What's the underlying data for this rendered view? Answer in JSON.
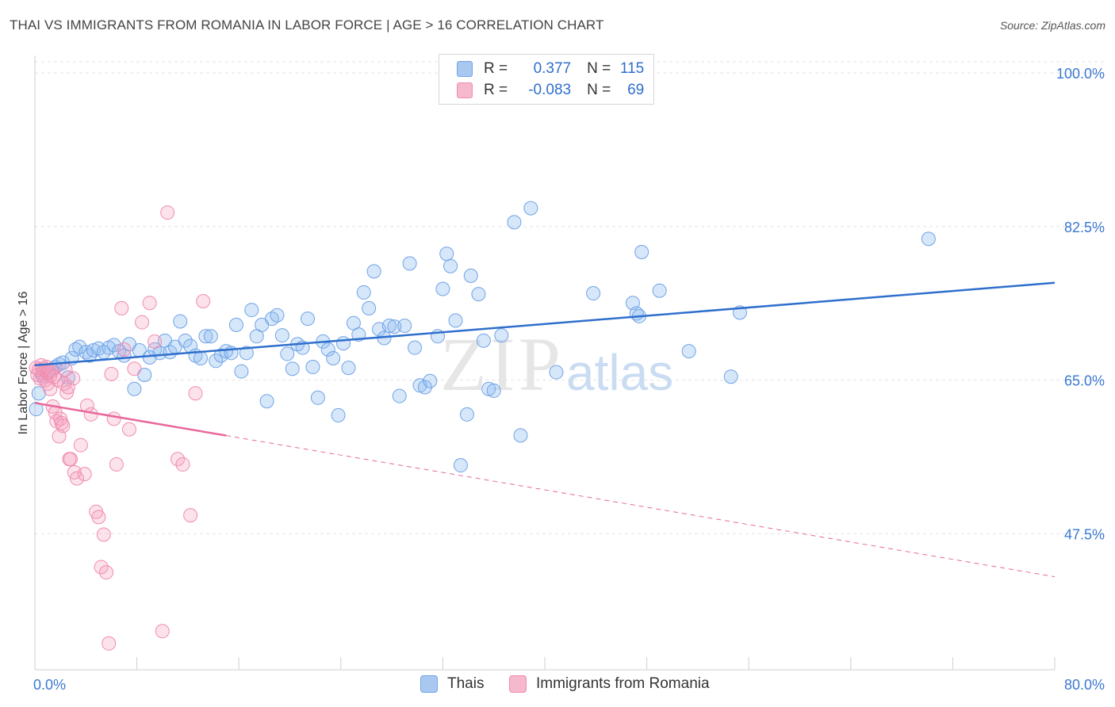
{
  "title": "THAI VS IMMIGRANTS FROM ROMANIA IN LABOR FORCE | AGE > 16 CORRELATION CHART",
  "source": "Source: ZipAtlas.com",
  "watermark": {
    "zip": "ZIP",
    "atlas": "atlas"
  },
  "legend": {
    "r_label": "R =",
    "n_label": "N =",
    "rows": [
      {
        "r": "0.377",
        "n": "115",
        "color": "#a8c8f0"
      },
      {
        "r": "-0.083",
        "n": "69",
        "color": "#f5b8cc"
      }
    ]
  },
  "bottom_legend": [
    {
      "label": "Thais",
      "color": "#a8c8f0"
    },
    {
      "label": "Immigrants from Romania",
      "color": "#f5b8cc"
    }
  ],
  "chart_data": {
    "type": "scatter",
    "title": "THAI VS IMMIGRANTS FROM ROMANIA IN LABOR FORCE | AGE > 16 CORRELATION CHART",
    "xlabel": "",
    "ylabel": "In Labor Force | Age > 16",
    "xlim": [
      0,
      80
    ],
    "ylim": [
      32,
      102
    ],
    "x_tick_labels": [
      "0.0%",
      "80.0%"
    ],
    "y_ticks": [
      47.5,
      65.0,
      82.5,
      100.0
    ],
    "y_tick_labels": [
      "47.5%",
      "65.0%",
      "82.5%",
      "100.0%"
    ],
    "grid": true,
    "series": [
      {
        "name": "Thais",
        "color": "#6fa3e6",
        "points": [
          [
            0.1,
            61.7
          ],
          [
            0.3,
            63.5
          ],
          [
            0.6,
            65.5
          ],
          [
            0.8,
            66.0
          ],
          [
            1.0,
            65.8
          ],
          [
            1.3,
            66.2
          ],
          [
            1.6,
            66.5
          ],
          [
            1.9,
            66.8
          ],
          [
            2.2,
            67.0
          ],
          [
            2.6,
            65.3
          ],
          [
            2.9,
            67.5
          ],
          [
            3.2,
            68.5
          ],
          [
            3.5,
            68.8
          ],
          [
            4.0,
            68.2
          ],
          [
            4.3,
            67.8
          ],
          [
            4.6,
            68.4
          ],
          [
            5.0,
            68.6
          ],
          [
            5.4,
            68.2
          ],
          [
            5.8,
            68.7
          ],
          [
            6.2,
            69.0
          ],
          [
            6.6,
            68.3
          ],
          [
            7.0,
            67.8
          ],
          [
            7.4,
            69.1
          ],
          [
            7.8,
            64.0
          ],
          [
            8.2,
            68.4
          ],
          [
            8.6,
            65.6
          ],
          [
            9.0,
            67.6
          ],
          [
            9.4,
            68.5
          ],
          [
            9.8,
            68.1
          ],
          [
            10.2,
            69.5
          ],
          [
            10.6,
            68.2
          ],
          [
            11.0,
            68.8
          ],
          [
            11.4,
            71.7
          ],
          [
            11.8,
            69.5
          ],
          [
            12.2,
            68.9
          ],
          [
            12.6,
            67.8
          ],
          [
            13.0,
            67.5
          ],
          [
            13.4,
            70.0
          ],
          [
            13.8,
            70.0
          ],
          [
            14.2,
            67.2
          ],
          [
            14.6,
            67.8
          ],
          [
            15.0,
            68.3
          ],
          [
            15.4,
            68.1
          ],
          [
            15.8,
            71.3
          ],
          [
            16.2,
            66.0
          ],
          [
            16.6,
            68.1
          ],
          [
            17.0,
            73.0
          ],
          [
            17.4,
            70.0
          ],
          [
            17.8,
            71.3
          ],
          [
            18.2,
            62.6
          ],
          [
            18.6,
            72.0
          ],
          [
            19.0,
            72.4
          ],
          [
            19.4,
            70.1
          ],
          [
            19.8,
            68.0
          ],
          [
            20.2,
            66.3
          ],
          [
            20.6,
            69.1
          ],
          [
            21.0,
            68.7
          ],
          [
            21.4,
            72.0
          ],
          [
            21.8,
            66.5
          ],
          [
            22.2,
            63.0
          ],
          [
            22.6,
            69.4
          ],
          [
            23.0,
            68.5
          ],
          [
            23.4,
            67.5
          ],
          [
            23.8,
            61.0
          ],
          [
            24.2,
            69.2
          ],
          [
            24.6,
            66.4
          ],
          [
            25.0,
            71.5
          ],
          [
            25.4,
            70.2
          ],
          [
            25.8,
            75.0
          ],
          [
            26.2,
            73.2
          ],
          [
            26.6,
            77.4
          ],
          [
            27.0,
            70.8
          ],
          [
            27.4,
            69.8
          ],
          [
            27.8,
            71.2
          ],
          [
            28.2,
            71.1
          ],
          [
            28.6,
            63.2
          ],
          [
            29.0,
            71.2
          ],
          [
            29.4,
            78.3
          ],
          [
            29.8,
            68.7
          ],
          [
            30.2,
            64.4
          ],
          [
            30.6,
            64.2
          ],
          [
            31.0,
            64.9
          ],
          [
            31.6,
            70.0
          ],
          [
            32.0,
            75.4
          ],
          [
            32.3,
            79.4
          ],
          [
            32.6,
            78.0
          ],
          [
            33.0,
            71.8
          ],
          [
            33.4,
            55.3
          ],
          [
            33.9,
            61.1
          ],
          [
            34.2,
            76.9
          ],
          [
            34.8,
            74.8
          ],
          [
            35.2,
            69.5
          ],
          [
            35.6,
            64.0
          ],
          [
            36.0,
            63.8
          ],
          [
            36.6,
            70.1
          ],
          [
            37.6,
            83.0
          ],
          [
            38.1,
            58.7
          ],
          [
            38.9,
            84.6
          ],
          [
            40.9,
            65.9
          ],
          [
            43.8,
            74.9
          ],
          [
            46.9,
            73.8
          ],
          [
            47.2,
            72.6
          ],
          [
            47.4,
            72.3
          ],
          [
            47.6,
            79.6
          ],
          [
            49.0,
            75.2
          ],
          [
            51.3,
            68.3
          ],
          [
            54.6,
            65.4
          ],
          [
            55.3,
            72.7
          ],
          [
            70.1,
            81.1
          ]
        ],
        "trend": {
          "x": [
            0,
            80
          ],
          "y": [
            66.7,
            76.1
          ]
        }
      },
      {
        "name": "Immigrants from Romania",
        "color": "#f08cb0",
        "points": [
          [
            0.1,
            66.4
          ],
          [
            0.2,
            65.6
          ],
          [
            0.3,
            66.2
          ],
          [
            0.4,
            65.2
          ],
          [
            0.5,
            66.7
          ],
          [
            0.6,
            65.8
          ],
          [
            0.7,
            66.3
          ],
          [
            0.8,
            65.0
          ],
          [
            0.9,
            66.5
          ],
          [
            1.0,
            65.9
          ],
          [
            1.0,
            64.6
          ],
          [
            1.1,
            66.1
          ],
          [
            1.2,
            65.5
          ],
          [
            1.2,
            64.0
          ],
          [
            1.3,
            66.0
          ],
          [
            1.4,
            62.0
          ],
          [
            1.5,
            65.4
          ],
          [
            1.6,
            61.3
          ],
          [
            1.7,
            60.3
          ],
          [
            1.8,
            65.0
          ],
          [
            1.9,
            58.6
          ],
          [
            2.0,
            60.6
          ],
          [
            2.1,
            60.1
          ],
          [
            2.2,
            59.8
          ],
          [
            2.3,
            64.6
          ],
          [
            2.4,
            66.2
          ],
          [
            2.5,
            63.6
          ],
          [
            2.6,
            64.2
          ],
          [
            2.7,
            56.0
          ],
          [
            2.8,
            56.0
          ],
          [
            3.0,
            65.2
          ],
          [
            3.1,
            54.5
          ],
          [
            3.3,
            53.8
          ],
          [
            3.6,
            57.6
          ],
          [
            3.9,
            54.3
          ],
          [
            4.1,
            62.1
          ],
          [
            4.4,
            61.1
          ],
          [
            4.8,
            50.0
          ],
          [
            5.0,
            49.4
          ],
          [
            5.2,
            43.7
          ],
          [
            5.4,
            47.4
          ],
          [
            5.6,
            43.1
          ],
          [
            5.8,
            35.0
          ],
          [
            6.0,
            65.7
          ],
          [
            6.2,
            60.6
          ],
          [
            6.4,
            55.4
          ],
          [
            6.8,
            73.2
          ],
          [
            7.0,
            68.5
          ],
          [
            7.4,
            59.4
          ],
          [
            7.8,
            66.3
          ],
          [
            8.4,
            71.6
          ],
          [
            9.0,
            73.8
          ],
          [
            9.4,
            69.4
          ],
          [
            10.0,
            36.4
          ],
          [
            10.4,
            84.1
          ],
          [
            11.2,
            56.0
          ],
          [
            11.6,
            55.4
          ],
          [
            12.2,
            49.6
          ],
          [
            12.6,
            63.5
          ],
          [
            13.2,
            74.0
          ]
        ],
        "trend": {
          "x": [
            0,
            80
          ],
          "y": [
            62.4,
            42.6
          ],
          "solid_until_x": 15
        }
      }
    ]
  }
}
